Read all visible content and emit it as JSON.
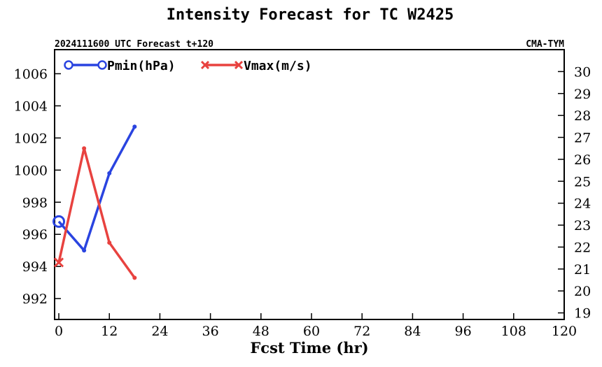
{
  "chart_data": {
    "type": "line",
    "title": "Intensity Forecast for TC W2425",
    "subtitle_left": "2024111600 UTC Forecast t+120",
    "subtitle_right": "CMA-TYM",
    "xlabel": "Fcst Time (hr)",
    "xlim": [
      -1,
      120
    ],
    "xticks": [
      0,
      12,
      24,
      36,
      48,
      60,
      72,
      84,
      96,
      108,
      120
    ],
    "y_left": {
      "lim": [
        990.7,
        1007.5
      ],
      "ticks": [
        992,
        994,
        996,
        998,
        1000,
        1002,
        1004,
        1006
      ]
    },
    "y_right": {
      "lim": [
        18.7,
        31.0
      ],
      "ticks": [
        19,
        20,
        21,
        22,
        23,
        24,
        25,
        26,
        27,
        28,
        29,
        30
      ]
    },
    "series": [
      {
        "name": "Pmin(hPa)",
        "axis": "left",
        "color": "#2a44e0",
        "marker": "circle",
        "x": [
          0,
          6,
          12,
          18
        ],
        "y": [
          996.8,
          995.0,
          999.8,
          1002.7
        ]
      },
      {
        "name": "Vmax(m/s)",
        "axis": "right",
        "color": "#e8423f",
        "marker": "x",
        "x": [
          0,
          6,
          12,
          18
        ],
        "y": [
          21.3,
          26.5,
          22.2,
          20.6
        ]
      }
    ],
    "legend_position": "top-left",
    "grid": false
  }
}
